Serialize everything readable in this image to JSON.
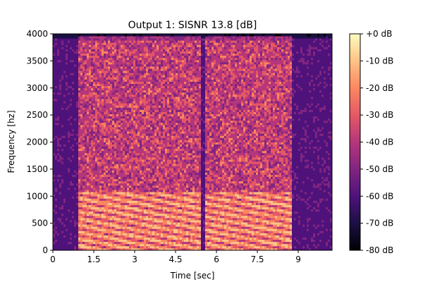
{
  "chart_data": {
    "type": "heatmap",
    "title": "Output 1: SISNR 13.8 [dB]",
    "xlabel": "Time [sec]",
    "ylabel": "Frequency [hz]",
    "xlim": [
      0,
      10.24
    ],
    "ylim": [
      0,
      4000
    ],
    "x_ticks": [
      0,
      1.5,
      3,
      4.5,
      6,
      7.5,
      9
    ],
    "x_tick_labels": [
      "0",
      "1.5",
      "3",
      "4.5",
      "6",
      "7.5",
      "9"
    ],
    "y_ticks": [
      0,
      500,
      1000,
      1500,
      2000,
      2500,
      3000,
      3500,
      4000
    ],
    "y_tick_labels": [
      "0",
      "500",
      "1000",
      "1500",
      "2000",
      "2500",
      "3000",
      "3500",
      "4000"
    ],
    "colorbar": {
      "label_values": [
        0,
        -10,
        -20,
        -30,
        -40,
        -50,
        -60,
        -70,
        -80
      ],
      "labels": [
        "+0 dB",
        "-10 dB",
        "-20 dB",
        "-30 dB",
        "-40 dB",
        "-50 dB",
        "-60 dB",
        "-70 dB",
        "-80 dB"
      ],
      "range": [
        -80,
        0
      ],
      "colormap": "magma"
    },
    "speech_segments_sec": [
      [
        0.9,
        5.4
      ],
      [
        5.6,
        8.8
      ]
    ],
    "energy_notes": "Strong harmonic energy below ~1000 Hz during speech; broadband energy up to ~3900 Hz; low energy near 0-0.9 s, ~5.5 s and after 8.8 s"
  },
  "colors": {
    "magma_stops": [
      "#000004",
      "#1c1044",
      "#4f127b",
      "#812581",
      "#b5367a",
      "#e55964",
      "#fb8761",
      "#fec287",
      "#fcfdbf"
    ]
  }
}
